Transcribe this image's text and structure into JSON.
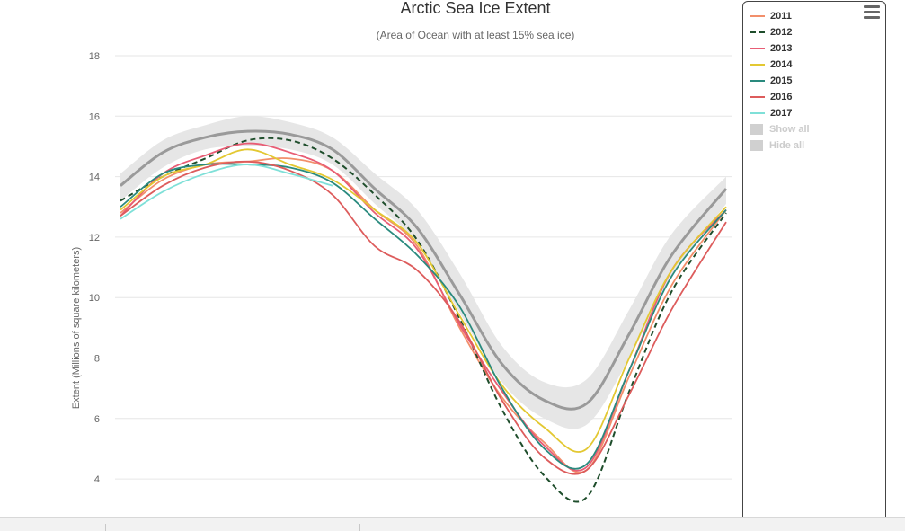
{
  "chart_data": {
    "type": "line",
    "title": "Arctic Sea Ice Extent",
    "subtitle": "(Area of Ocean with at least 15% sea ice)",
    "ylabel": "Extent (Millions of square kilometers)",
    "xlabel": "",
    "ylim": [
      3.2,
      18
    ],
    "yticks": [
      4,
      6,
      8,
      10,
      12,
      14,
      16,
      18
    ],
    "x": [
      0,
      0.07,
      0.14,
      0.21,
      0.28,
      0.35,
      0.42,
      0.49,
      0.56,
      0.63,
      0.7,
      0.77,
      0.84,
      0.91,
      1.0
    ],
    "grid": true,
    "legend_position": "right",
    "average_band": {
      "mean": [
        13.7,
        14.8,
        15.3,
        15.5,
        15.4,
        14.9,
        13.6,
        12.3,
        10.1,
        7.8,
        6.6,
        6.5,
        8.8,
        11.4,
        13.6
      ],
      "upper": [
        14.1,
        15.2,
        15.7,
        16.0,
        15.8,
        15.3,
        14.1,
        12.9,
        10.8,
        8.4,
        7.2,
        7.3,
        9.6,
        12.1,
        14.0
      ],
      "lower": [
        13.2,
        14.3,
        14.9,
        15.0,
        14.9,
        14.4,
        13.1,
        11.8,
        9.5,
        7.2,
        6.0,
        5.8,
        8.0,
        10.7,
        13.1
      ]
    },
    "series": [
      {
        "name": "2011",
        "color": "#f28f6b",
        "dash": false,
        "values": [
          12.8,
          13.9,
          14.4,
          14.5,
          14.6,
          14.2,
          12.9,
          11.7,
          9.0,
          6.7,
          5.2,
          4.3,
          7.4,
          10.4,
          12.9
        ]
      },
      {
        "name": "2012",
        "color": "#1e4d2b",
        "dash": true,
        "values": [
          13.2,
          14.0,
          14.6,
          15.2,
          15.2,
          14.6,
          13.4,
          11.9,
          9.3,
          6.3,
          4.1,
          3.4,
          6.9,
          10.2,
          12.8
        ]
      },
      {
        "name": "2013",
        "color": "#e85d75",
        "dash": false,
        "values": [
          12.7,
          14.1,
          14.7,
          15.1,
          14.8,
          14.2,
          12.8,
          11.6,
          9.1,
          6.9,
          5.1,
          4.4,
          7.6,
          10.9,
          12.9
        ]
      },
      {
        "name": "2014",
        "color": "#e3c832",
        "dash": false,
        "values": [
          12.9,
          14.0,
          14.4,
          14.9,
          14.4,
          13.9,
          12.9,
          11.8,
          9.4,
          7.1,
          5.7,
          5.0,
          8.0,
          10.9,
          13.0
        ]
      },
      {
        "name": "2015",
        "color": "#2a8a7e",
        "dash": false,
        "values": [
          13.0,
          14.1,
          14.4,
          14.4,
          14.3,
          13.8,
          12.6,
          11.4,
          9.7,
          7.0,
          5.0,
          4.5,
          7.6,
          10.7,
          12.9
        ]
      },
      {
        "name": "2016",
        "color": "#dd5c5c",
        "dash": false,
        "values": [
          12.7,
          13.7,
          14.3,
          14.5,
          14.2,
          13.4,
          11.7,
          10.9,
          9.2,
          6.6,
          4.7,
          4.3,
          6.8,
          9.6,
          12.5
        ]
      },
      {
        "name": "2017",
        "color": "#7fe0d8",
        "dash": false,
        "values": [
          12.6,
          13.5,
          14.1,
          14.4,
          14.1,
          13.7,
          null,
          null,
          null,
          null,
          null,
          null,
          null,
          null,
          null
        ]
      }
    ]
  },
  "legend": {
    "show_all_label": "Show all",
    "hide_all_label": "Hide all",
    "menu_icon": "hamburger-menu-icon"
  }
}
